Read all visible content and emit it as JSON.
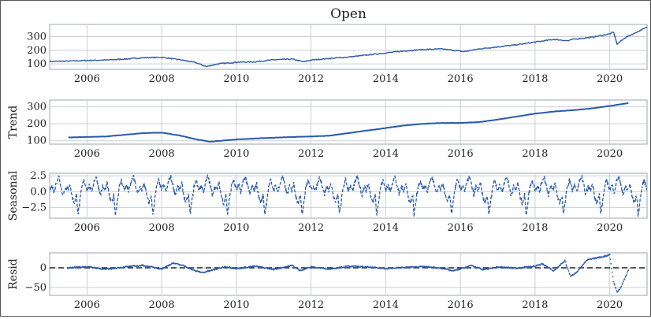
{
  "title": "Open",
  "colors": {
    "series": "#2a5ba8",
    "grid": "#c9cfd8",
    "zero_line": "#222222",
    "axes": "#9aa4b1"
  },
  "chart_data": [
    {
      "id": "observed",
      "type": "line",
      "title": "Open",
      "ylabel": "",
      "xlim": [
        2005,
        2021
      ],
      "ylim": [
        60,
        390
      ],
      "yticks": [
        100,
        200,
        300
      ],
      "xticks": [
        2006,
        2008,
        2010,
        2012,
        2014,
        2016,
        2018,
        2020
      ],
      "grid": true,
      "x": [
        2005.0,
        2005.5,
        2006.0,
        2006.5,
        2007.0,
        2007.5,
        2008.0,
        2008.5,
        2008.9,
        2009.2,
        2009.5,
        2010.0,
        2010.5,
        2011.0,
        2011.5,
        2011.8,
        2012.0,
        2012.5,
        2013.0,
        2013.5,
        2014.0,
        2014.5,
        2015.0,
        2015.5,
        2015.8,
        2016.1,
        2016.5,
        2017.0,
        2017.5,
        2018.0,
        2018.5,
        2018.9,
        2019.0,
        2019.5,
        2020.0,
        2020.1,
        2020.2,
        2020.4,
        2020.7,
        2021.0
      ],
      "values": [
        118,
        120,
        125,
        128,
        135,
        145,
        148,
        130,
        110,
        80,
        100,
        112,
        115,
        130,
        135,
        115,
        128,
        140,
        150,
        165,
        180,
        195,
        205,
        210,
        200,
        190,
        210,
        225,
        240,
        260,
        280,
        270,
        280,
        295,
        320,
        335,
        245,
        290,
        330,
        370
      ]
    },
    {
      "id": "trend",
      "type": "line",
      "ylabel": "Trend",
      "xlim": [
        2005,
        2021
      ],
      "ylim": [
        80,
        340
      ],
      "yticks": [
        100,
        200,
        300
      ],
      "xticks": [
        2006,
        2008,
        2010,
        2012,
        2014,
        2016,
        2018,
        2020
      ],
      "grid": true,
      "x": [
        2005.5,
        2006.0,
        2006.5,
        2007.0,
        2007.5,
        2008.0,
        2008.5,
        2009.0,
        2009.3,
        2009.6,
        2010.0,
        2010.5,
        2011.0,
        2011.5,
        2012.0,
        2012.5,
        2013.0,
        2013.5,
        2014.0,
        2014.5,
        2015.0,
        2015.5,
        2016.0,
        2016.5,
        2017.0,
        2017.5,
        2018.0,
        2018.5,
        2019.0,
        2019.5,
        2020.0,
        2020.5
      ],
      "values": [
        120,
        122,
        125,
        135,
        145,
        148,
        130,
        105,
        95,
        100,
        108,
        113,
        118,
        122,
        125,
        130,
        145,
        160,
        175,
        190,
        200,
        205,
        205,
        210,
        225,
        242,
        260,
        272,
        280,
        290,
        305,
        322
      ]
    },
    {
      "id": "seasonal",
      "type": "line",
      "ylabel": "Seasonal",
      "xlim": [
        2005,
        2021
      ],
      "ylim": [
        -4.2,
        2.9
      ],
      "yticks": [
        -2.5,
        0.0,
        2.5
      ],
      "ytick_labels": [
        "−2.5",
        "0.0",
        "2.5"
      ],
      "xticks": [
        2006,
        2008,
        2010,
        2012,
        2014,
        2016,
        2018,
        2020
      ],
      "grid": true,
      "period_years": 1.0,
      "annual_pattern_x": [
        0.0,
        0.06,
        0.12,
        0.18,
        0.24,
        0.3,
        0.36,
        0.42,
        0.48,
        0.54,
        0.6,
        0.66,
        0.72,
        0.76,
        0.8,
        0.86,
        0.92,
        1.0
      ],
      "annual_pattern_values": [
        0.3,
        1.0,
        0.0,
        1.5,
        2.4,
        1.0,
        -0.5,
        0.8,
        0.2,
        1.3,
        -0.8,
        -1.8,
        -0.5,
        -3.6,
        -2.0,
        0.6,
        1.8,
        0.3
      ]
    },
    {
      "id": "resid",
      "type": "scatter",
      "ylabel": "Resid",
      "xlim": [
        2005,
        2021
      ],
      "ylim": [
        -70,
        38
      ],
      "yticks": [
        -50,
        0
      ],
      "ytick_labels": [
        "−50",
        "0"
      ],
      "xticks": [
        2006,
        2008,
        2010,
        2012,
        2014,
        2016,
        2018,
        2020
      ],
      "grid": true,
      "zero_line": true,
      "x": [
        2005.5,
        2006.0,
        2006.5,
        2007.0,
        2007.5,
        2008.0,
        2008.3,
        2008.6,
        2008.9,
        2009.1,
        2009.4,
        2009.7,
        2010.0,
        2010.5,
        2011.0,
        2011.5,
        2011.7,
        2012.0,
        2012.5,
        2013.0,
        2013.5,
        2014.0,
        2014.5,
        2015.0,
        2015.5,
        2015.8,
        2016.0,
        2016.3,
        2016.6,
        2017.0,
        2017.5,
        2018.0,
        2018.2,
        2018.5,
        2018.8,
        2018.95,
        2019.1,
        2019.4,
        2019.7,
        2019.9,
        2020.0,
        2020.1,
        2020.2,
        2020.3,
        2020.4,
        2020.5
      ],
      "values": [
        0,
        3,
        -4,
        2,
        6,
        -3,
        12,
        5,
        -8,
        -12,
        -5,
        3,
        -2,
        4,
        -4,
        6,
        -7,
        2,
        -3,
        4,
        2,
        -2,
        1,
        3,
        -1,
        -8,
        -3,
        6,
        -5,
        2,
        -1,
        4,
        10,
        -8,
        18,
        -22,
        -12,
        20,
        26,
        30,
        34,
        -35,
        -62,
        -50,
        -28,
        -5
      ]
    }
  ]
}
